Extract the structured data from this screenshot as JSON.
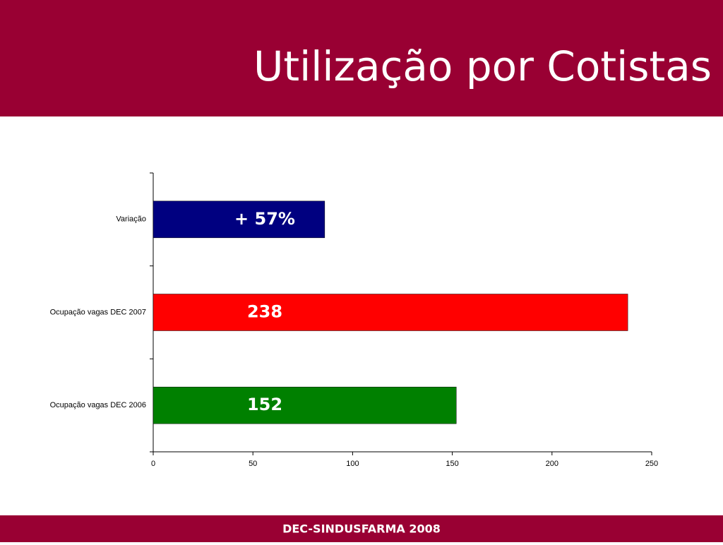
{
  "chart_data": {
    "type": "barh",
    "title": "Utilização por Cotistas",
    "categories": [
      "Ocupação vagas DEC 2006",
      "Ocupação vagas DEC 2007",
      "Variação"
    ],
    "values": [
      152,
      238,
      86
    ],
    "value_labels": [
      "152",
      "238",
      null
    ],
    "annotation": "+ 57%",
    "colors": [
      "#008000",
      "#ff0000",
      "#000080"
    ],
    "xlim": [
      0,
      250
    ],
    "xticks": [
      0,
      50,
      100,
      150,
      200,
      250
    ],
    "grid": false
  },
  "footer": "DEC-SINDUSFARMA 2008"
}
